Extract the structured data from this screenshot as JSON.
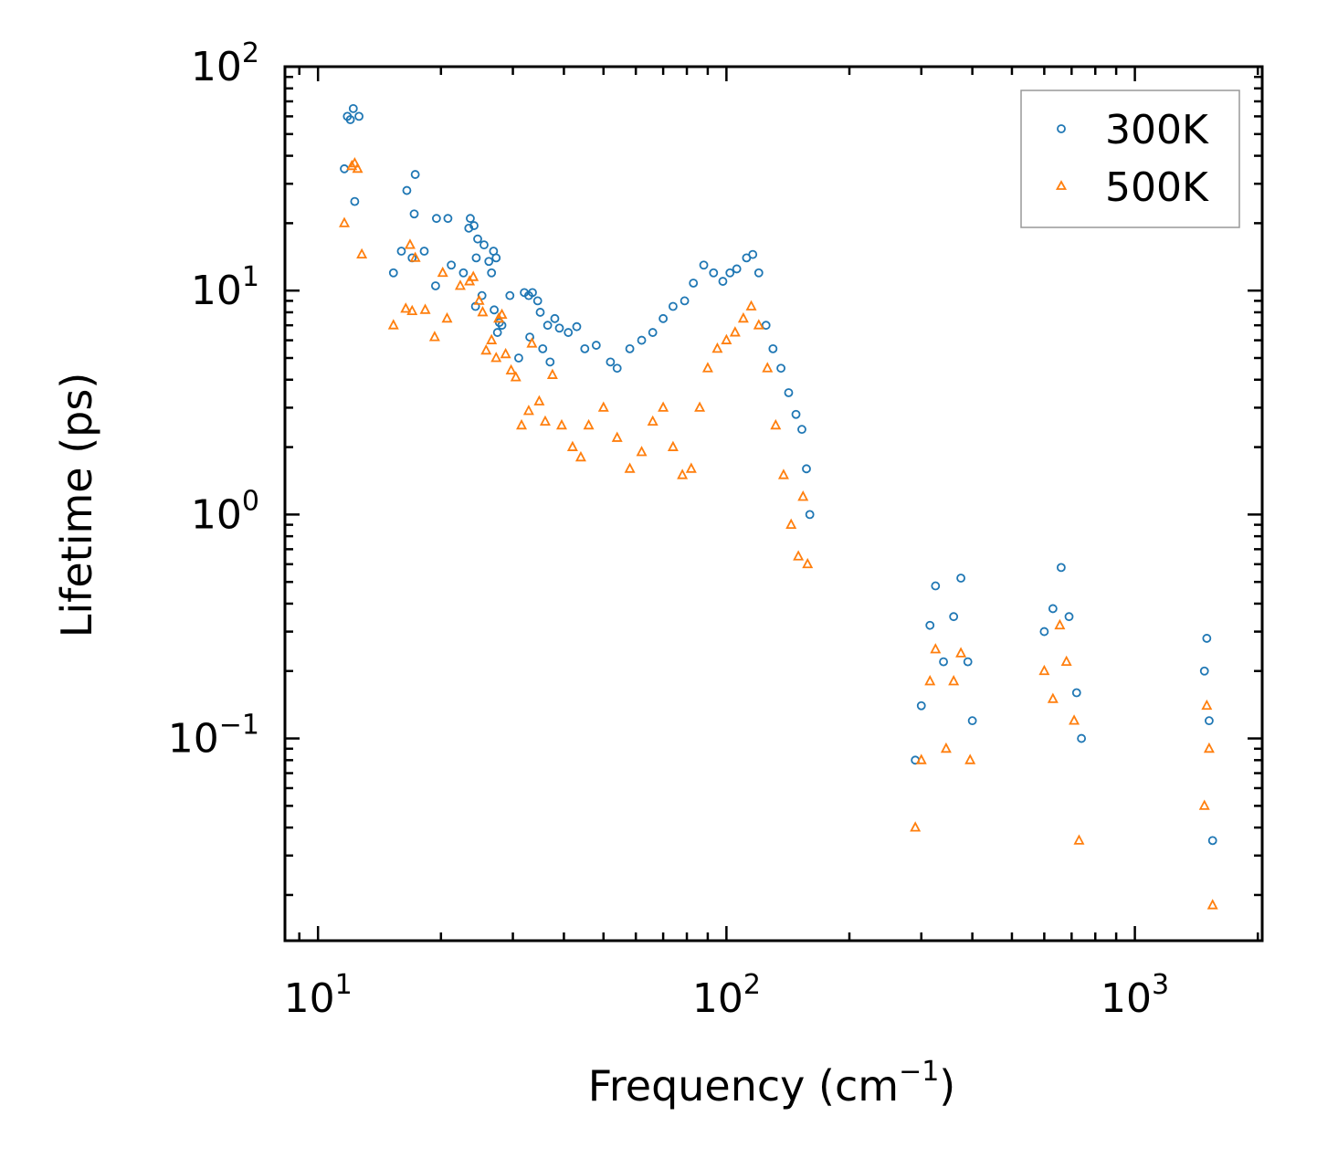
{
  "chart_data": {
    "type": "scatter",
    "title": "",
    "xlabel": "Frequency (cm",
    "xlabel_exp": "−1",
    "xlabel_close": ")",
    "ylabel": "Lifetime (ps)",
    "xscale": "log",
    "yscale": "log",
    "xlim": [
      8.3,
      2050
    ],
    "ylim": [
      0.0125,
      100
    ],
    "xticks": [
      {
        "value": 10,
        "base": "10",
        "exp": "1"
      },
      {
        "value": 100,
        "base": "10",
        "exp": "2"
      },
      {
        "value": 1000,
        "base": "10",
        "exp": "3"
      }
    ],
    "yticks": [
      {
        "value": 100,
        "base": "10",
        "exp": "2"
      },
      {
        "value": 10,
        "base": "10",
        "exp": "1"
      },
      {
        "value": 1,
        "base": "10",
        "exp": "0"
      },
      {
        "value": 0.1,
        "base": "10",
        "exp": "−1"
      }
    ],
    "legend_position": "top-right",
    "series": [
      {
        "name": "300K",
        "marker": "circle",
        "color": "#1f77b4",
        "points": [
          [
            11.8,
            60
          ],
          [
            12.2,
            65
          ],
          [
            12.0,
            58
          ],
          [
            12.6,
            60
          ],
          [
            11.6,
            35
          ],
          [
            12.3,
            25
          ],
          [
            16.5,
            28
          ],
          [
            17.3,
            33
          ],
          [
            17.2,
            22
          ],
          [
            16.0,
            15
          ],
          [
            15.3,
            12
          ],
          [
            17.0,
            14
          ],
          [
            18.2,
            15
          ],
          [
            19.5,
            21
          ],
          [
            20.8,
            21
          ],
          [
            19.4,
            10.5
          ],
          [
            21.2,
            13
          ],
          [
            22.7,
            12
          ],
          [
            23.4,
            19
          ],
          [
            23.6,
            21
          ],
          [
            24.1,
            19.5
          ],
          [
            24.6,
            17
          ],
          [
            24.4,
            14
          ],
          [
            25.5,
            16
          ],
          [
            26.2,
            13.5
          ],
          [
            26.9,
            15
          ],
          [
            27.3,
            14
          ],
          [
            26.6,
            12
          ],
          [
            25.2,
            9.5
          ],
          [
            24.3,
            8.5
          ],
          [
            27.0,
            8.2
          ],
          [
            27.8,
            7.2
          ],
          [
            29.5,
            9.5
          ],
          [
            28.2,
            7.0
          ],
          [
            27.5,
            6.5
          ],
          [
            31.0,
            5.0
          ],
          [
            32.0,
            9.8
          ],
          [
            32.8,
            9.5
          ],
          [
            33.5,
            9.8
          ],
          [
            34.5,
            9.0
          ],
          [
            35.0,
            8.0
          ],
          [
            36.5,
            7.0
          ],
          [
            38.0,
            7.5
          ],
          [
            33.0,
            6.2
          ],
          [
            35.5,
            5.5
          ],
          [
            37.0,
            4.8
          ],
          [
            39.0,
            6.8
          ],
          [
            41.0,
            6.5
          ],
          [
            43.0,
            6.9
          ],
          [
            45.0,
            5.5
          ],
          [
            48.0,
            5.7
          ],
          [
            52.0,
            4.8
          ],
          [
            54.0,
            4.5
          ],
          [
            58.0,
            5.5
          ],
          [
            62.0,
            6.0
          ],
          [
            66.0,
            6.5
          ],
          [
            70.0,
            7.5
          ],
          [
            74.0,
            8.5
          ],
          [
            79.0,
            9.0
          ],
          [
            83.0,
            10.8
          ],
          [
            88.0,
            13.0
          ],
          [
            93.0,
            12.0
          ],
          [
            98.0,
            11.0
          ],
          [
            102.0,
            12.0
          ],
          [
            106.0,
            12.5
          ],
          [
            112.0,
            14.0
          ],
          [
            116.0,
            14.5
          ],
          [
            120.0,
            12.0
          ],
          [
            125.0,
            7.0
          ],
          [
            130.0,
            5.5
          ],
          [
            136.0,
            4.5
          ],
          [
            142.0,
            3.5
          ],
          [
            148.0,
            2.8
          ],
          [
            153.0,
            2.4
          ],
          [
            160.0,
            1.0
          ],
          [
            157.0,
            1.6
          ],
          [
            290.0,
            0.08
          ],
          [
            300.0,
            0.14
          ],
          [
            315.0,
            0.32
          ],
          [
            325.0,
            0.48
          ],
          [
            340.0,
            0.22
          ],
          [
            360.0,
            0.35
          ],
          [
            375.0,
            0.52
          ],
          [
            390.0,
            0.22
          ],
          [
            400.0,
            0.12
          ],
          [
            600.0,
            0.3
          ],
          [
            630.0,
            0.38
          ],
          [
            660.0,
            0.58
          ],
          [
            690.0,
            0.35
          ],
          [
            720.0,
            0.16
          ],
          [
            740.0,
            0.1
          ],
          [
            1480.0,
            0.2
          ],
          [
            1500.0,
            0.28
          ],
          [
            1520.0,
            0.12
          ],
          [
            1550.0,
            0.035
          ]
        ]
      },
      {
        "name": "500K",
        "marker": "triangle",
        "color": "#ff7f0e",
        "points": [
          [
            11.6,
            20
          ],
          [
            12.1,
            36
          ],
          [
            12.5,
            35
          ],
          [
            12.3,
            37
          ],
          [
            12.8,
            14.5
          ],
          [
            15.3,
            7.0
          ],
          [
            16.4,
            8.3
          ],
          [
            16.8,
            16
          ],
          [
            17.3,
            14
          ],
          [
            17.0,
            8.1
          ],
          [
            18.3,
            8.2
          ],
          [
            19.3,
            6.2
          ],
          [
            20.2,
            12
          ],
          [
            20.7,
            7.5
          ],
          [
            22.3,
            10.5
          ],
          [
            23.5,
            11
          ],
          [
            24.0,
            11.5
          ],
          [
            24.8,
            9.0
          ],
          [
            25.3,
            8.0
          ],
          [
            25.8,
            5.4
          ],
          [
            26.6,
            6.0
          ],
          [
            27.3,
            5.0
          ],
          [
            27.7,
            7.5
          ],
          [
            28.2,
            7.8
          ],
          [
            28.8,
            5.2
          ],
          [
            29.7,
            4.4
          ],
          [
            30.5,
            4.1
          ],
          [
            31.5,
            2.5
          ],
          [
            32.8,
            2.9
          ],
          [
            33.4,
            5.8
          ],
          [
            34.8,
            3.2
          ],
          [
            36.0,
            2.6
          ],
          [
            37.5,
            4.2
          ],
          [
            39.5,
            2.5
          ],
          [
            42.0,
            2.0
          ],
          [
            44.0,
            1.8
          ],
          [
            46.0,
            2.5
          ],
          [
            50.0,
            3.0
          ],
          [
            54.0,
            2.2
          ],
          [
            58.0,
            1.6
          ],
          [
            62.0,
            1.9
          ],
          [
            66.0,
            2.6
          ],
          [
            70.0,
            3.0
          ],
          [
            74.0,
            2.0
          ],
          [
            78.0,
            1.5
          ],
          [
            82.0,
            1.6
          ],
          [
            86.0,
            3.0
          ],
          [
            90.0,
            4.5
          ],
          [
            95.0,
            5.5
          ],
          [
            100.0,
            6.0
          ],
          [
            105.0,
            6.5
          ],
          [
            110.0,
            7.5
          ],
          [
            115.0,
            8.5
          ],
          [
            120.0,
            7.0
          ],
          [
            126.0,
            4.5
          ],
          [
            132.0,
            2.5
          ],
          [
            138.0,
            1.5
          ],
          [
            144.0,
            0.9
          ],
          [
            150.0,
            0.65
          ],
          [
            158.0,
            0.6
          ],
          [
            154.0,
            1.2
          ],
          [
            290.0,
            0.04
          ],
          [
            300.0,
            0.08
          ],
          [
            315.0,
            0.18
          ],
          [
            325.0,
            0.25
          ],
          [
            345.0,
            0.09
          ],
          [
            360.0,
            0.18
          ],
          [
            375.0,
            0.24
          ],
          [
            395.0,
            0.08
          ],
          [
            600.0,
            0.2
          ],
          [
            630.0,
            0.15
          ],
          [
            655.0,
            0.32
          ],
          [
            680.0,
            0.22
          ],
          [
            710.0,
            0.12
          ],
          [
            730.0,
            0.035
          ],
          [
            1480.0,
            0.05
          ],
          [
            1500.0,
            0.14
          ],
          [
            1520.0,
            0.09
          ],
          [
            1550.0,
            0.018
          ]
        ]
      }
    ]
  }
}
